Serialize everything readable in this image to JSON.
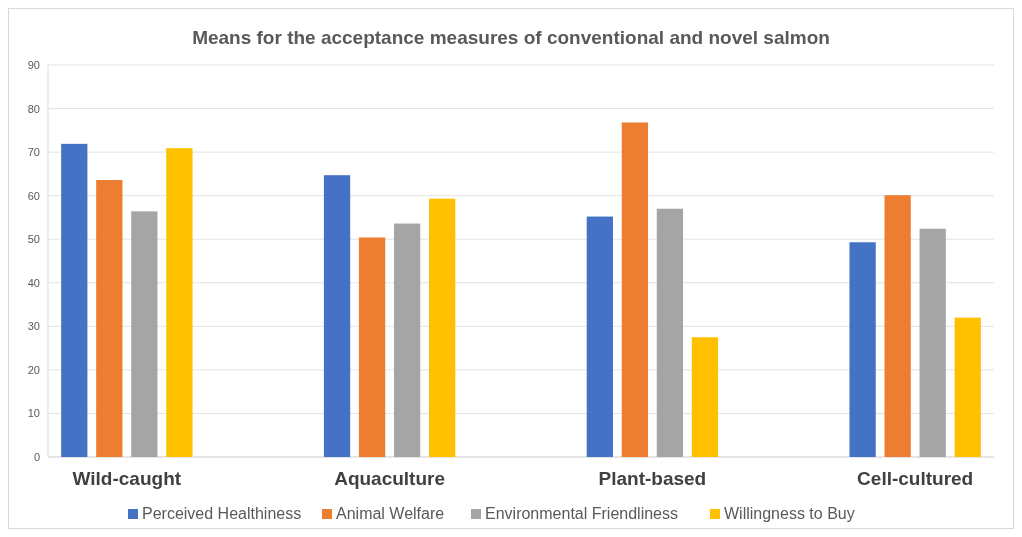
{
  "chart_data": {
    "type": "bar",
    "title": "Means for the acceptance measures of conventional and novel salmon",
    "categories": [
      "Wild-caught",
      "Aquaculture",
      "Plant-based",
      "Cell-cultured"
    ],
    "series": [
      {
        "name": "Perceived Healthiness",
        "color": "#4472c4",
        "values": [
          71.9,
          64.7,
          55.2,
          49.3
        ]
      },
      {
        "name": "Animal Welfare",
        "color": "#ed7d31",
        "values": [
          63.6,
          50.4,
          76.8,
          60.1
        ]
      },
      {
        "name": "Environmental Friendliness",
        "color": "#a5a5a5",
        "values": [
          56.4,
          53.6,
          57.0,
          52.4
        ]
      },
      {
        "name": "Willingness to Buy",
        "color": "#ffc000",
        "values": [
          70.9,
          59.3,
          27.5,
          32.0
        ]
      }
    ],
    "ylim": [
      0,
      90
    ],
    "yticks": [
      0,
      10,
      20,
      30,
      40,
      50,
      60,
      70,
      80,
      90
    ],
    "grid": "y",
    "legend": "bottom"
  }
}
